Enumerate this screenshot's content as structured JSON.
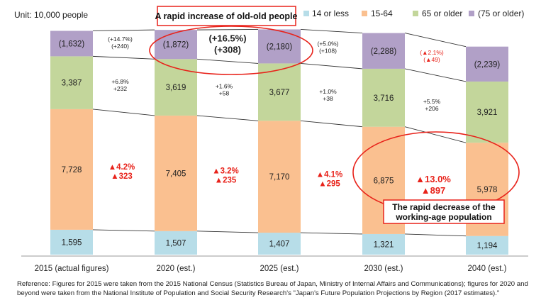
{
  "unit_label": "Unit: 10,000 people",
  "callouts": {
    "old_old": "A rapid increase of old-old people",
    "working_age_line1": "The rapid decrease of the",
    "working_age_line2": "working-age population"
  },
  "reference": "Reference: Figures for 2015 were taken from the 2015 National Census (Statistics Bureau of Japan, Ministry of Internal Affairs and Communications); figures for 2020 and beyond were taken from the National Institute of Population and Social Security Research's \"Japan's Future Population Projections by Region (2017 estimates).\"",
  "colors": {
    "c14": "#b7dde8",
    "c1564": "#fac090",
    "c65": "#c3d69b",
    "c75": "#b1a0c7",
    "red": "#e8221a"
  },
  "chart_data": {
    "type": "bar",
    "stacked": true,
    "categories": [
      "2015 (actual figures)",
      "2020 (est.)",
      "2025 (est.)",
      "2030 (est.)",
      "2040 (est.)"
    ],
    "series": [
      {
        "name": "14 or less",
        "values": [
          1595,
          1507,
          1407,
          1321,
          1194
        ],
        "labels": [
          "1,595",
          "1,507",
          "1,407",
          "1,321",
          "1,194"
        ]
      },
      {
        "name": "15-64",
        "values": [
          7728,
          7405,
          7170,
          6875,
          5978
        ],
        "labels": [
          "7,728",
          "7,405",
          "7,170",
          "6,875",
          "5,978"
        ]
      },
      {
        "name": "65 or older",
        "values": [
          3387,
          3619,
          3677,
          3716,
          3921
        ],
        "labels": [
          "3,387",
          "3,619",
          "3,677",
          "3,716",
          "3,921"
        ]
      },
      {
        "name": "(75 or older)",
        "values": [
          1632,
          1872,
          2180,
          2288,
          2239
        ],
        "labels": [
          "(1,632)",
          "(1,872)",
          "(2,180)",
          "(2,288)",
          "(2,239)"
        ]
      }
    ],
    "legend_position": "top-right",
    "change_labels": {
      "t75": [
        {
          "lines": [
            "(+14.7%)",
            "(+240)"
          ],
          "red": false,
          "big": false
        },
        {
          "lines": [
            "(+16.5%)",
            "(+308)"
          ],
          "red": false,
          "big": true
        },
        {
          "lines": [
            "(+5.0%)",
            "(+108)"
          ],
          "red": false,
          "big": false
        },
        {
          "lines": [
            "(▲2.1%)",
            "(▲49)"
          ],
          "red": true,
          "big": false
        }
      ],
      "t65": [
        {
          "lines": [
            "+6.8%",
            "+232"
          ]
        },
        {
          "lines": [
            "+1.6%",
            "+58"
          ]
        },
        {
          "lines": [
            "+1.0%",
            "+38"
          ]
        },
        {
          "lines": [
            "+5.5%",
            "+206"
          ]
        }
      ],
      "t1564": [
        {
          "lines": [
            "▲4.2%",
            "▲323"
          ],
          "big": false
        },
        {
          "lines": [
            "▲3.2%",
            "▲235"
          ],
          "big": false
        },
        {
          "lines": [
            "▲4.1%",
            "▲295"
          ],
          "big": false
        },
        {
          "lines": [
            "▲13.0%",
            "▲897"
          ],
          "big": true
        }
      ]
    }
  }
}
